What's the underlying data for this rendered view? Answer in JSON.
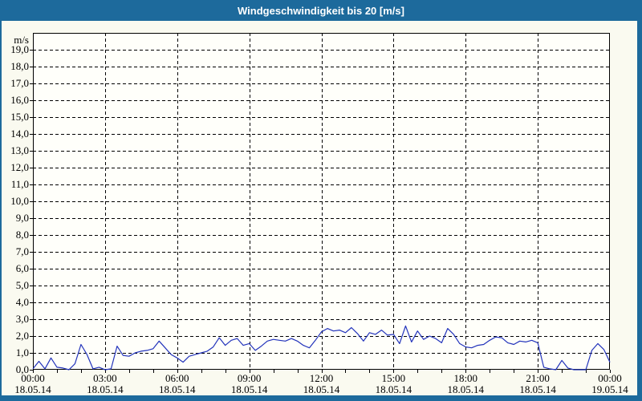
{
  "window": {
    "title": "Windgeschwindigkeit bis 20 [m/s]"
  },
  "colors": {
    "chrome": "#1d6a9c",
    "panel_bg": "#fafaf0",
    "plot_bg": "#fffffa",
    "grid": "#000000",
    "axis": "#000000",
    "text": "#000000",
    "title_text": "#ffffff",
    "line": "#2233bb"
  },
  "chart_data": {
    "type": "line",
    "title": "Windgeschwindigkeit bis 20 [m/s]",
    "unit": "m/s",
    "ylabel": "m/s",
    "xlabel": "",
    "ylim": [
      0,
      20
    ],
    "ytick_step": 1,
    "ytick_labels": [
      "0,0",
      "1,0",
      "2,0",
      "3,0",
      "4,0",
      "5,0",
      "6,0",
      "7,0",
      "8,0",
      "9,0",
      "10,0",
      "11,0",
      "12,0",
      "13,0",
      "14,0",
      "15,0",
      "16,0",
      "17,0",
      "18,0",
      "19,0"
    ],
    "xlim_hours": [
      0,
      24
    ],
    "minor_xtick_every_hours": 1,
    "grid": "dashed",
    "legend": "none",
    "xticks": {
      "hours": [
        0,
        3,
        6,
        9,
        12,
        15,
        18,
        21,
        24
      ],
      "times": [
        "00:00",
        "03:00",
        "06:00",
        "09:00",
        "12:00",
        "15:00",
        "18:00",
        "21:00",
        "00:00"
      ],
      "dates": [
        "18.05.14",
        "18.05.14",
        "18.05.14",
        "18.05.14",
        "18.05.14",
        "18.05.14",
        "18.05.14",
        "18.05.14",
        "19.05.14"
      ]
    },
    "series": [
      {
        "name": "Windgeschwindigkeit",
        "color": "#2233bb",
        "x_hours": [
          0,
          0.25,
          0.5,
          0.75,
          1,
          1.25,
          1.5,
          1.75,
          2,
          2.25,
          2.5,
          2.75,
          3,
          3.25,
          3.5,
          3.75,
          4,
          4.25,
          4.5,
          4.75,
          5,
          5.25,
          5.5,
          5.75,
          6,
          6.25,
          6.5,
          6.75,
          7,
          7.25,
          7.5,
          7.75,
          8,
          8.25,
          8.5,
          8.75,
          9,
          9.25,
          9.5,
          9.75,
          10,
          10.25,
          10.5,
          10.75,
          11,
          11.25,
          11.5,
          11.75,
          12,
          12.25,
          12.5,
          12.75,
          13,
          13.25,
          13.5,
          13.75,
          14,
          14.25,
          14.5,
          14.75,
          15,
          15.25,
          15.5,
          15.75,
          16,
          16.25,
          16.5,
          16.75,
          17,
          17.25,
          17.5,
          17.75,
          18,
          18.25,
          18.5,
          18.75,
          19,
          19.25,
          19.5,
          19.75,
          20,
          20.25,
          20.5,
          20.75,
          21,
          21.25,
          21.5,
          21.75,
          22,
          22.25,
          22.5,
          22.75,
          23,
          23.25,
          23.5,
          23.75,
          24
        ],
        "values": [
          0.05,
          0.5,
          0.05,
          0.7,
          0.15,
          0.1,
          0,
          0.35,
          1.5,
          0.9,
          0.05,
          0.15,
          0,
          0.05,
          1.4,
          0.85,
          0.8,
          1,
          1.1,
          1.15,
          1.25,
          1.7,
          1.3,
          0.9,
          0.7,
          0.45,
          0.8,
          0.9,
          1,
          1.1,
          1.35,
          1.9,
          1.45,
          1.75,
          1.85,
          1.45,
          1.55,
          1.15,
          1.4,
          1.7,
          1.8,
          1.75,
          1.7,
          1.85,
          1.7,
          1.45,
          1.3,
          1.75,
          2.25,
          2.45,
          2.3,
          2.35,
          2.2,
          2.5,
          2.15,
          1.7,
          2.2,
          2.1,
          2.35,
          2.05,
          2.1,
          1.55,
          2.6,
          1.65,
          2.3,
          1.8,
          2,
          1.85,
          1.6,
          2.45,
          2.1,
          1.55,
          1.35,
          1.3,
          1.45,
          1.5,
          1.75,
          1.95,
          1.9,
          1.6,
          1.5,
          1.7,
          1.65,
          1.75,
          1.6,
          0.15,
          0.05,
          0,
          0.55,
          0.1,
          0,
          0,
          0,
          1.15,
          1.55,
          1.2,
          0.45
        ]
      }
    ]
  }
}
